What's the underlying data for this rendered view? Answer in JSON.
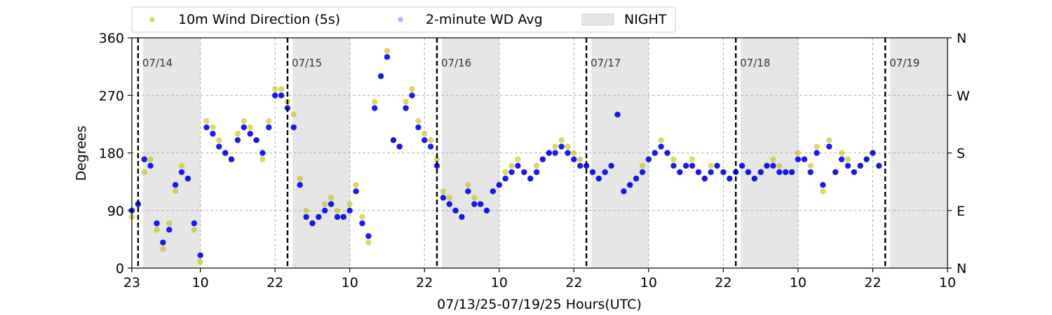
{
  "chart_data": {
    "type": "scatter",
    "title": "",
    "xlabel": "07/13/25-07/19/25  Hours(UTC)",
    "ylabel": "Degrees",
    "x_unit": "hours since 2025-07-13 23:00 UTC",
    "xlim": [
      0,
      131
    ],
    "ylim": [
      0,
      360
    ],
    "x_ticks": [
      {
        "hour": 0,
        "label": "23"
      },
      {
        "hour": 11,
        "label": "10"
      },
      {
        "hour": 23,
        "label": "22"
      },
      {
        "hour": 35,
        "label": "10"
      },
      {
        "hour": 47,
        "label": "22"
      },
      {
        "hour": 59,
        "label": "10"
      },
      {
        "hour": 71,
        "label": "22"
      },
      {
        "hour": 83,
        "label": "10"
      },
      {
        "hour": 95,
        "label": "22"
      },
      {
        "hour": 107,
        "label": "10"
      },
      {
        "hour": 119,
        "label": "22"
      },
      {
        "hour": 131,
        "label": "10"
      }
    ],
    "y_ticks": [
      0,
      90,
      180,
      270,
      360
    ],
    "y_right_labels": [
      {
        "value": 0,
        "label": "N"
      },
      {
        "value": 90,
        "label": "E"
      },
      {
        "value": 180,
        "label": "S"
      },
      {
        "value": 270,
        "label": "W"
      },
      {
        "value": 360,
        "label": "N"
      }
    ],
    "grid": true,
    "legend": {
      "placement": "top",
      "entries": [
        {
          "label": "10m Wind Direction (5s)",
          "color": "#bfbf00",
          "kind": "point"
        },
        {
          "label": "2-minute WD Avg",
          "color": "#0000ff",
          "kind": "point"
        },
        {
          "label": "NIGHT",
          "color": "#e6e6e6",
          "kind": "patch"
        }
      ]
    },
    "day_markers": [
      {
        "hour": 1,
        "label": "07/14"
      },
      {
        "hour": 25,
        "label": "07/15"
      },
      {
        "hour": 49,
        "label": "07/16"
      },
      {
        "hour": 73,
        "label": "07/17"
      },
      {
        "hour": 97,
        "label": "07/18"
      },
      {
        "hour": 121,
        "label": "07/19"
      }
    ],
    "night_periods": [
      [
        1.8,
        11
      ],
      [
        25.8,
        35
      ],
      [
        49.8,
        59
      ],
      [
        73.8,
        83
      ],
      [
        97.8,
        107
      ],
      [
        121.8,
        131
      ]
    ],
    "series": [
      {
        "name": "10m Wind Direction (5s)",
        "color": "#bfbf00",
        "x": [
          0,
          1,
          2,
          3,
          4,
          5,
          6,
          7,
          8,
          9,
          10,
          11,
          12,
          13,
          14,
          15,
          16,
          17,
          18,
          19,
          20,
          21,
          22,
          23,
          24,
          25,
          26,
          27,
          28,
          29,
          30,
          31,
          32,
          33,
          34,
          35,
          36,
          37,
          38,
          39,
          40,
          41,
          42,
          43,
          44,
          45,
          46,
          47,
          48,
          49,
          50,
          51,
          52,
          53,
          54,
          55,
          56,
          57,
          58,
          59,
          60,
          61,
          62,
          63,
          64,
          65,
          66,
          67,
          68,
          69,
          70,
          71,
          72,
          73,
          74,
          75,
          76,
          77,
          78,
          79,
          80,
          81,
          82,
          83,
          84,
          85,
          86,
          87,
          88,
          89,
          90,
          91,
          92,
          93,
          94,
          95,
          96,
          97,
          98,
          99,
          100,
          101,
          102,
          103,
          104,
          105,
          106,
          107,
          108,
          109,
          110,
          111,
          112,
          113,
          114,
          115,
          116,
          117,
          118,
          119,
          120
        ],
        "y": [
          80,
          100,
          150,
          170,
          60,
          30,
          70,
          120,
          160,
          140,
          60,
          10,
          230,
          220,
          200,
          180,
          170,
          210,
          230,
          220,
          200,
          170,
          230,
          280,
          280,
          260,
          240,
          140,
          90,
          70,
          80,
          100,
          110,
          90,
          80,
          100,
          130,
          80,
          40,
          260,
          300,
          340,
          200,
          190,
          260,
          280,
          230,
          210,
          200,
          170,
          120,
          110,
          90,
          80,
          130,
          110,
          100,
          90,
          120,
          130,
          150,
          160,
          170,
          150,
          140,
          160,
          170,
          180,
          190,
          200,
          190,
          180,
          170,
          160,
          150,
          140,
          150,
          160,
          240,
          120,
          130,
          140,
          160,
          170,
          180,
          200,
          180,
          170,
          150,
          160,
          170,
          150,
          140,
          160,
          160,
          150,
          140,
          150,
          160,
          150,
          140,
          150,
          160,
          170,
          160,
          150,
          150,
          180,
          170,
          160,
          190,
          120,
          200,
          150,
          180,
          170,
          150,
          160,
          170,
          180,
          160
        ]
      },
      {
        "name": "2-minute WD Avg",
        "color": "#0000ff",
        "x": [
          0,
          1,
          2,
          3,
          4,
          5,
          6,
          7,
          8,
          9,
          10,
          11,
          12,
          13,
          14,
          15,
          16,
          17,
          18,
          19,
          20,
          21,
          22,
          23,
          24,
          25,
          26,
          27,
          28,
          29,
          30,
          31,
          32,
          33,
          34,
          35,
          36,
          37,
          38,
          39,
          40,
          41,
          42,
          43,
          44,
          45,
          46,
          47,
          48,
          49,
          50,
          51,
          52,
          53,
          54,
          55,
          56,
          57,
          58,
          59,
          60,
          61,
          62,
          63,
          64,
          65,
          66,
          67,
          68,
          69,
          70,
          71,
          72,
          73,
          74,
          75,
          76,
          77,
          78,
          79,
          80,
          81,
          82,
          83,
          84,
          85,
          86,
          87,
          88,
          89,
          90,
          91,
          92,
          93,
          94,
          95,
          96,
          97,
          98,
          99,
          100,
          101,
          102,
          103,
          104,
          105,
          106,
          107,
          108,
          109,
          110,
          111,
          112,
          113,
          114,
          115,
          116,
          117,
          118,
          119,
          120
        ],
        "y": [
          90,
          100,
          170,
          160,
          70,
          40,
          60,
          130,
          150,
          140,
          70,
          20,
          220,
          210,
          190,
          180,
          170,
          200,
          220,
          210,
          200,
          180,
          220,
          270,
          270,
          250,
          220,
          130,
          80,
          70,
          80,
          90,
          100,
          80,
          80,
          90,
          120,
          70,
          50,
          250,
          300,
          330,
          200,
          190,
          250,
          270,
          220,
          200,
          190,
          160,
          110,
          100,
          90,
          80,
          120,
          100,
          100,
          90,
          120,
          130,
          140,
          150,
          160,
          150,
          140,
          150,
          170,
          180,
          180,
          190,
          180,
          170,
          160,
          160,
          150,
          140,
          150,
          160,
          240,
          120,
          130,
          140,
          150,
          170,
          180,
          190,
          180,
          160,
          150,
          160,
          160,
          150,
          140,
          150,
          160,
          150,
          140,
          150,
          160,
          150,
          140,
          150,
          160,
          160,
          150,
          150,
          150,
          170,
          170,
          150,
          180,
          130,
          190,
          150,
          170,
          160,
          150,
          160,
          170,
          180,
          160
        ]
      }
    ]
  }
}
